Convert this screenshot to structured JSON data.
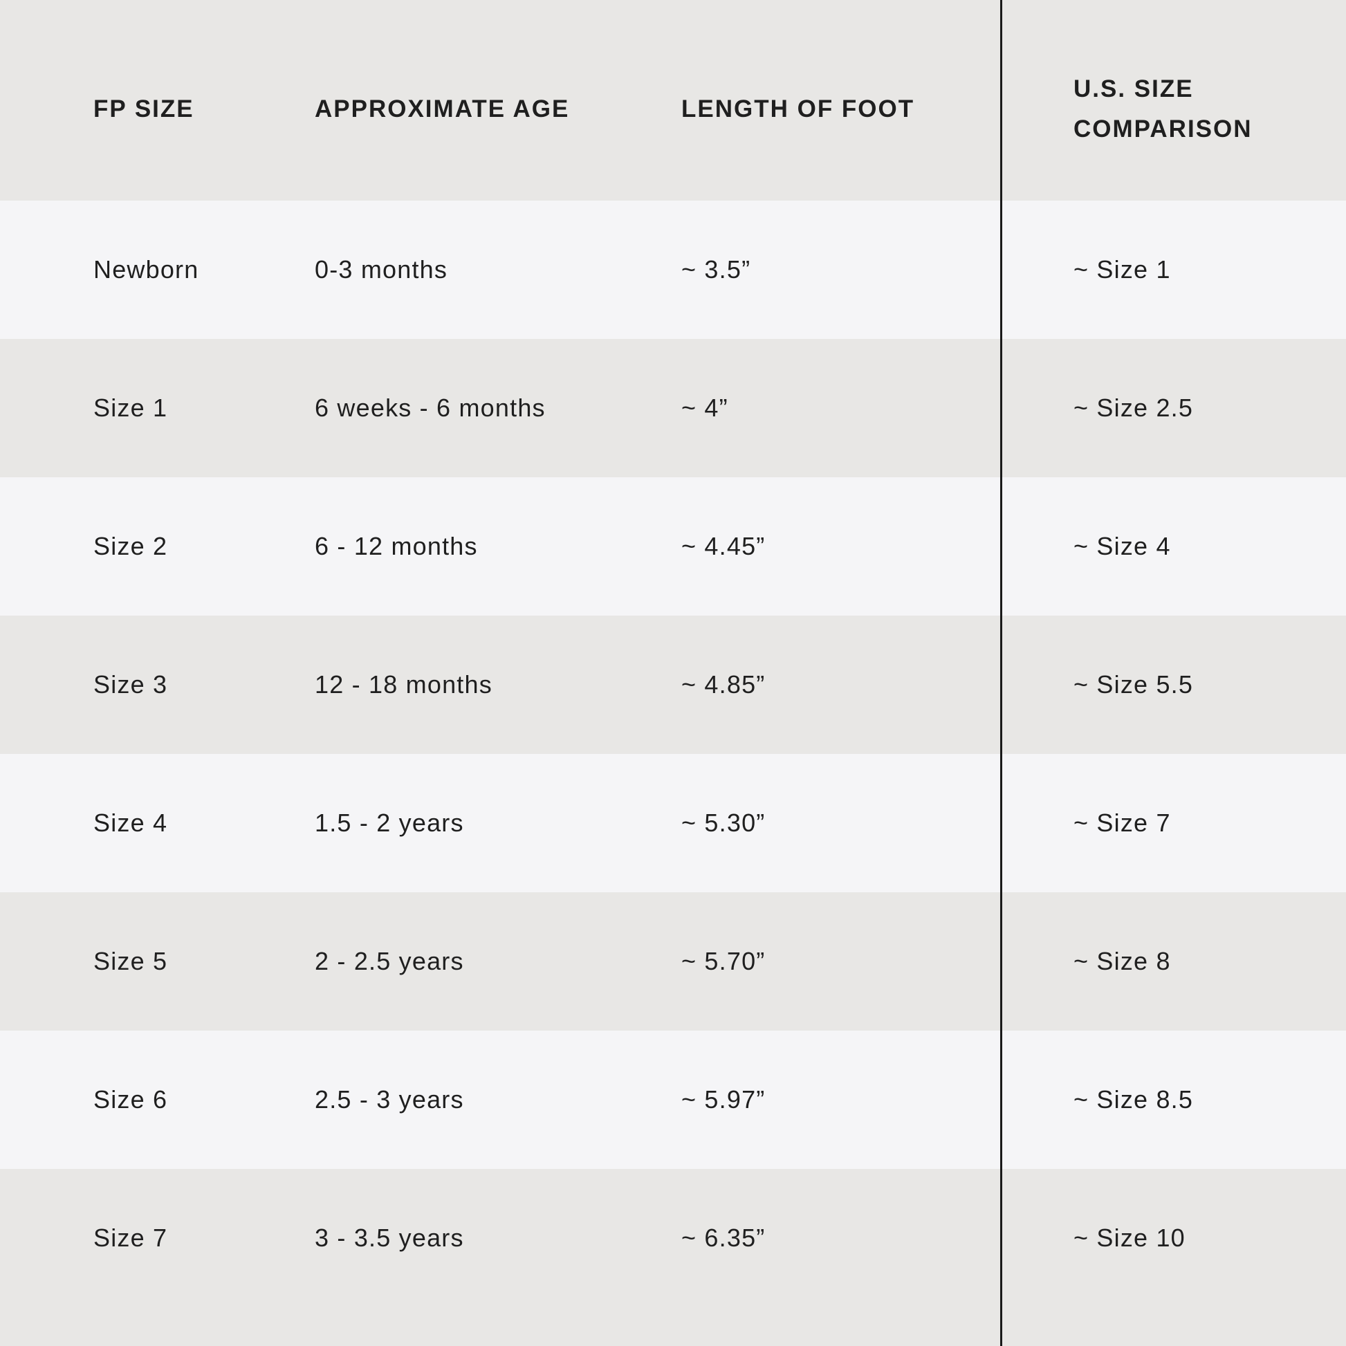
{
  "chart_data": {
    "type": "table",
    "columns": [
      "FP SIZE",
      "APPROXIMATE AGE",
      "LENGTH OF FOOT",
      "U.S. SIZE COMPARISON"
    ],
    "rows": [
      [
        "Newborn",
        "0-3 months",
        "~ 3.5”",
        "~ Size 1"
      ],
      [
        "Size 1",
        "6 weeks - 6 months",
        "~ 4”",
        "~ Size 2.5"
      ],
      [
        "Size 2",
        "6 - 12 months",
        "~ 4.45”",
        "~ Size 4"
      ],
      [
        "Size 3",
        "12 - 18 months",
        "~ 4.85”",
        "~ Size 5.5"
      ],
      [
        "Size 4",
        "1.5 - 2 years",
        "~ 5.30”",
        "~ Size 7"
      ],
      [
        "Size 5",
        "2 - 2.5 years",
        "~ 5.70”",
        "~ Size 8"
      ],
      [
        "Size 6",
        "2.5 - 3 years",
        "~ 5.97”",
        "~ Size 8.5"
      ],
      [
        "Size 7",
        "3 - 3.5 years",
        "~ 6.35”",
        "~ Size 10"
      ]
    ],
    "title": "",
    "legend": "none",
    "grid": "off"
  },
  "table": {
    "header": {
      "fp_size": "FP SIZE",
      "age": "APPROXIMATE AGE",
      "foot_length": "LENGTH OF FOOT",
      "us_size": "U.S. SIZE COMPARISON"
    },
    "rows": [
      {
        "fp_size": "Newborn",
        "age": "0-3 months",
        "foot_length": "~ 3.5”",
        "us_size": "~ Size 1"
      },
      {
        "fp_size": "Size 1",
        "age": "6 weeks - 6 months",
        "foot_length": "~ 4”",
        "us_size": "~ Size 2.5"
      },
      {
        "fp_size": "Size 2",
        "age": "6 - 12 months",
        "foot_length": "~ 4.45”",
        "us_size": "~ Size 4"
      },
      {
        "fp_size": "Size 3",
        "age": "12 - 18 months",
        "foot_length": "~ 4.85”",
        "us_size": "~ Size 5.5"
      },
      {
        "fp_size": "Size 4",
        "age": "1.5 - 2 years",
        "foot_length": "~ 5.30”",
        "us_size": "~ Size 7"
      },
      {
        "fp_size": "Size 5",
        "age": "2 - 2.5 years",
        "foot_length": "~ 5.70”",
        "us_size": "~ Size 8"
      },
      {
        "fp_size": "Size 6",
        "age": "2.5 - 3 years",
        "foot_length": "~ 5.97”",
        "us_size": "~ Size 8.5"
      },
      {
        "fp_size": "Size 7",
        "age": "3 - 3.5 years",
        "foot_length": "~ 6.35”",
        "us_size": "~ Size 10"
      }
    ]
  },
  "colors": {
    "row_light": "#f5f5f7",
    "row_gray": "#e8e7e5",
    "divider": "#1a1a1a",
    "text": "#1f1f1f"
  }
}
